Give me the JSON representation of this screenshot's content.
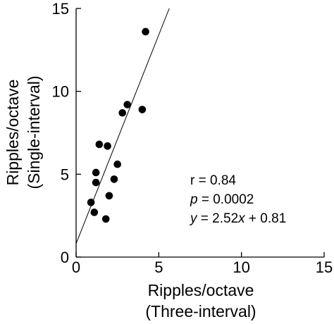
{
  "chart_data": {
    "type": "scatter",
    "xlabel": [
      "Ripples/octave",
      "(Three-interval)"
    ],
    "ylabel": [
      "Ripples/octave",
      "(Single-interval)"
    ],
    "xlim": [
      0,
      15
    ],
    "ylim": [
      0,
      15
    ],
    "xticks": [
      "0",
      "5",
      "10",
      "15"
    ],
    "yticks": [
      "0",
      "5",
      "10",
      "15"
    ],
    "grid": false,
    "points": [
      {
        "x": 0.9,
        "y": 3.3
      },
      {
        "x": 1.1,
        "y": 2.7
      },
      {
        "x": 1.2,
        "y": 4.5
      },
      {
        "x": 1.2,
        "y": 5.1
      },
      {
        "x": 1.4,
        "y": 6.8
      },
      {
        "x": 1.8,
        "y": 2.3
      },
      {
        "x": 1.9,
        "y": 6.7
      },
      {
        "x": 2.0,
        "y": 3.7
      },
      {
        "x": 2.3,
        "y": 4.7
      },
      {
        "x": 2.5,
        "y": 5.6
      },
      {
        "x": 2.8,
        "y": 8.7
      },
      {
        "x": 3.1,
        "y": 9.2
      },
      {
        "x": 4.0,
        "y": 8.9
      },
      {
        "x": 4.2,
        "y": 13.6
      }
    ],
    "regression": {
      "slope": 2.52,
      "intercept": 0.81
    },
    "annotations": {
      "r_line": "r = 0.84",
      "p_line": "p = 0.0002",
      "eq_line": "y = 2.52x + 0.81"
    },
    "colors": {
      "points": "#000000",
      "line": "#000000",
      "axes": "#000000"
    }
  }
}
